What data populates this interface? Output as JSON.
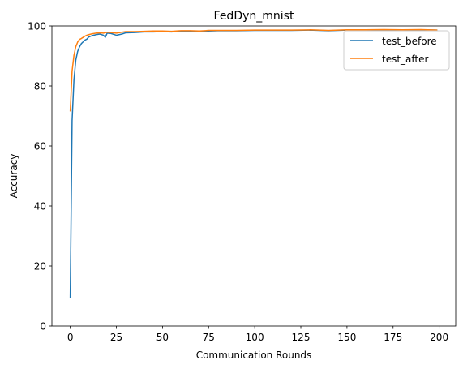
{
  "chart_data": {
    "type": "line",
    "title": "FedDyn_mnist",
    "xlabel": "Communication Rounds",
    "ylabel": "Accuracy",
    "xlim": [
      -9.95,
      208.95
    ],
    "ylim": [
      0,
      100
    ],
    "xticks": [
      "0",
      "25",
      "50",
      "75",
      "100",
      "125",
      "150",
      "175",
      "200"
    ],
    "yticks": [
      "0",
      "20",
      "40",
      "60",
      "80",
      "100"
    ],
    "legend_position": "top-right",
    "series": [
      {
        "name": "test_before",
        "color": "#1f77b4",
        "x": [
          0,
          1,
          2,
          3,
          4,
          5,
          6,
          7,
          8,
          9,
          10,
          12,
          14,
          16,
          18,
          19,
          20,
          22,
          25,
          28,
          30,
          35,
          40,
          45,
          50,
          55,
          60,
          65,
          70,
          75,
          80,
          90,
          100,
          110,
          120,
          130,
          140,
          150,
          160,
          170,
          180,
          190,
          199
        ],
        "y": [
          9.4,
          68.5,
          82.0,
          88.6,
          91.5,
          93.0,
          94.1,
          94.7,
          95.3,
          95.6,
          96.3,
          96.8,
          97.1,
          97.3,
          96.9,
          96.2,
          97.6,
          97.5,
          96.9,
          97.3,
          97.7,
          97.8,
          98.0,
          98.0,
          98.1,
          98.0,
          98.3,
          98.2,
          98.1,
          98.3,
          98.4,
          98.4,
          98.5,
          98.5,
          98.5,
          98.6,
          98.4,
          98.6,
          98.6,
          98.7,
          98.6,
          98.7,
          98.6
        ]
      },
      {
        "name": "test_after",
        "color": "#ff7f0e",
        "x": [
          0,
          1,
          2,
          3,
          4,
          5,
          6,
          7,
          8,
          9,
          10,
          12,
          14,
          16,
          18,
          20,
          22,
          25,
          28,
          30,
          35,
          40,
          45,
          50,
          55,
          60,
          65,
          70,
          75,
          80,
          90,
          100,
          110,
          120,
          130,
          140,
          150,
          160,
          170,
          180,
          190,
          199
        ],
        "y": [
          71.5,
          85.0,
          90.2,
          93.1,
          94.6,
          95.5,
          95.8,
          96.2,
          96.6,
          96.9,
          97.1,
          97.4,
          97.6,
          97.7,
          97.6,
          97.9,
          97.8,
          97.6,
          97.9,
          98.1,
          98.1,
          98.2,
          98.3,
          98.3,
          98.2,
          98.4,
          98.4,
          98.3,
          98.5,
          98.5,
          98.5,
          98.6,
          98.6,
          98.6,
          98.7,
          98.5,
          98.7,
          98.7,
          98.8,
          98.7,
          98.8,
          98.6
        ]
      }
    ]
  }
}
